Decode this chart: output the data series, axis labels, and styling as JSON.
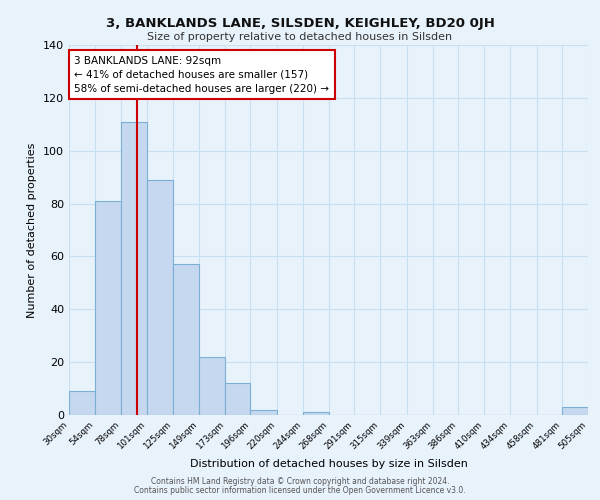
{
  "title": "3, BANKLANDS LANE, SILSDEN, KEIGHLEY, BD20 0JH",
  "subtitle": "Size of property relative to detached houses in Silsden",
  "xlabel": "Distribution of detached houses by size in Silsden",
  "ylabel": "Number of detached properties",
  "bar_values": [
    9,
    81,
    111,
    89,
    57,
    22,
    12,
    2,
    0,
    1,
    0,
    0,
    0,
    0,
    0,
    0,
    0,
    0,
    0,
    3
  ],
  "bar_labels": [
    "30sqm",
    "54sqm",
    "78sqm",
    "101sqm",
    "125sqm",
    "149sqm",
    "173sqm",
    "196sqm",
    "220sqm",
    "244sqm",
    "268sqm",
    "291sqm",
    "315sqm",
    "339sqm",
    "363sqm",
    "386sqm",
    "410sqm",
    "434sqm",
    "458sqm",
    "481sqm",
    "505sqm"
  ],
  "bar_edges": [
    30,
    54,
    78,
    101,
    125,
    149,
    173,
    196,
    220,
    244,
    268,
    291,
    315,
    339,
    363,
    386,
    410,
    434,
    458,
    481,
    505
  ],
  "bar_color": "#c5d8f0",
  "bar_edge_color": "#7bafd4",
  "vline_color": "#cc0000",
  "vline_x": 92,
  "annotation_text": "3 BANKLANDS LANE: 92sqm\n← 41% of detached houses are smaller (157)\n58% of semi-detached houses are larger (220) →",
  "annotation_box_edge": "#cc0000",
  "annotation_box_face": "#ffffff",
  "ylim": [
    0,
    140
  ],
  "yticks": [
    0,
    20,
    40,
    60,
    80,
    100,
    120,
    140
  ],
  "grid_color": "#c8dff0",
  "background_color": "#e8f2fb",
  "footer_line1": "Contains HM Land Registry data © Crown copyright and database right 2024.",
  "footer_line2": "Contains public sector information licensed under the Open Government Licence v3.0."
}
